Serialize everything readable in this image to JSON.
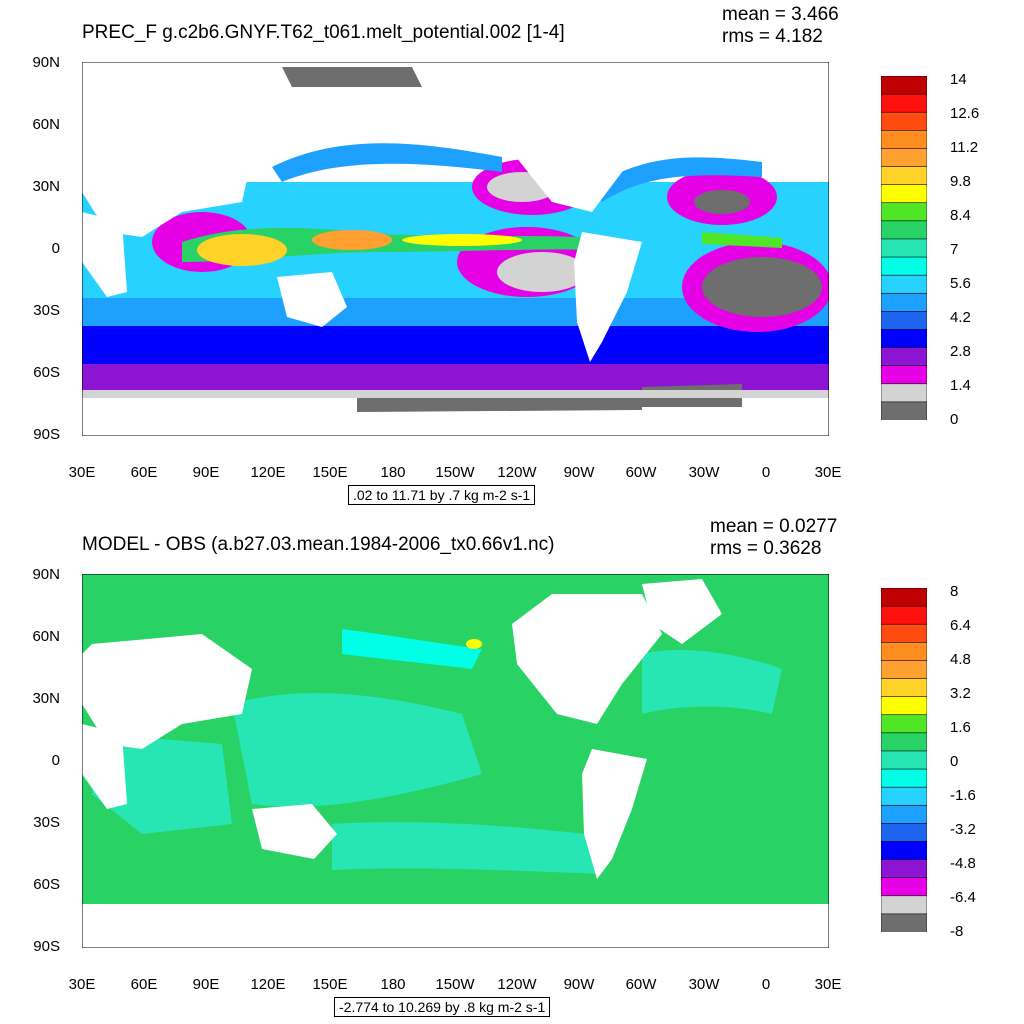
{
  "axes": {
    "lat_labels": [
      "90N",
      "60N",
      "30N",
      "0",
      "30S",
      "60S",
      "90S"
    ],
    "lon_labels": [
      "30E",
      "60E",
      "90E",
      "120E",
      "150E",
      "180",
      "150W",
      "120W",
      "90W",
      "60W",
      "30W",
      "0",
      "30E"
    ]
  },
  "panels": [
    {
      "title": "PREC_F g.c2b6.GNYF.T62_t061.melt_potential.002 [1-4]",
      "mean": "mean = 3.466",
      "rms": "rms = 4.182",
      "range_text": ".02 to 11.71 by .7 kg m-2 s-1",
      "colorbar": {
        "labels": [
          "14",
          "12.6",
          "11.2",
          "9.8",
          "8.4",
          "7",
          "5.6",
          "4.2",
          "2.8",
          "1.4",
          "0"
        ],
        "colors": [
          "#c00000",
          "#ff1010",
          "#ff4a10",
          "#ff8c1e",
          "#ffa030",
          "#ffd228",
          "#ffff00",
          "#50e628",
          "#28d264",
          "#28e6b4",
          "#00ffe6",
          "#28d2ff",
          "#1ea0ff",
          "#1e64f0",
          "#0000ff",
          "#8c14d2",
          "#e600e6",
          "#d3d3d3",
          "#6e6e6e"
        ]
      }
    },
    {
      "title": "MODEL - OBS (a.b27.03.mean.1984-2006_tx0.66v1.nc)",
      "mean": "mean = 0.0277",
      "rms": "rms = 0.3628",
      "range_text": "-2.774 to 10.269 by .8 kg m-2 s-1",
      "colorbar": {
        "labels": [
          "8",
          "6.4",
          "4.8",
          "3.2",
          "1.6",
          "0",
          "-1.6",
          "-3.2",
          "-4.8",
          "-6.4",
          "-8"
        ],
        "colors": [
          "#c00000",
          "#ff1010",
          "#ff4a10",
          "#ff8c1e",
          "#ffa030",
          "#ffd228",
          "#ffff00",
          "#50e628",
          "#28d264",
          "#28e6b4",
          "#00ffe6",
          "#28d2ff",
          "#1ea0ff",
          "#1e64f0",
          "#0000ff",
          "#8c14d2",
          "#e600e6",
          "#d3d3d3",
          "#6e6e6e"
        ]
      }
    }
  ]
}
